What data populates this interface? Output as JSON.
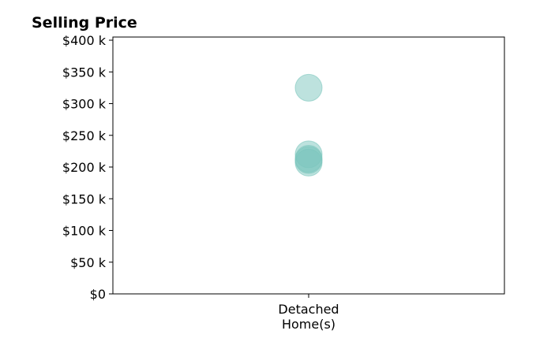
{
  "chart_data": {
    "type": "scatter",
    "title": "Selling Price",
    "xlabel": "",
    "ylabel": "",
    "categories": [
      [
        "Detached",
        "Home(s)"
      ]
    ],
    "y_ticks": [
      {
        "value": 0,
        "label": "$0"
      },
      {
        "value": 50000,
        "label": "$50 k"
      },
      {
        "value": 100000,
        "label": "$100 k"
      },
      {
        "value": 150000,
        "label": "$150 k"
      },
      {
        "value": 200000,
        "label": "$200 k"
      },
      {
        "value": 250000,
        "label": "$250 k"
      },
      {
        "value": 300000,
        "label": "$300 k"
      },
      {
        "value": 350000,
        "label": "$350 k"
      },
      {
        "value": 400000,
        "label": "$400 k"
      }
    ],
    "ylim": [
      0,
      405000
    ],
    "grid": false,
    "legend": "none",
    "marker_color": "#7cc6bd",
    "marker_opacity": 0.5,
    "points": [
      {
        "category": 0,
        "y": 325000
      },
      {
        "category": 0,
        "y": 220000
      },
      {
        "category": 0,
        "y": 213000
      },
      {
        "category": 0,
        "y": 207000
      },
      {
        "category": 0,
        "y": 211000
      }
    ]
  }
}
